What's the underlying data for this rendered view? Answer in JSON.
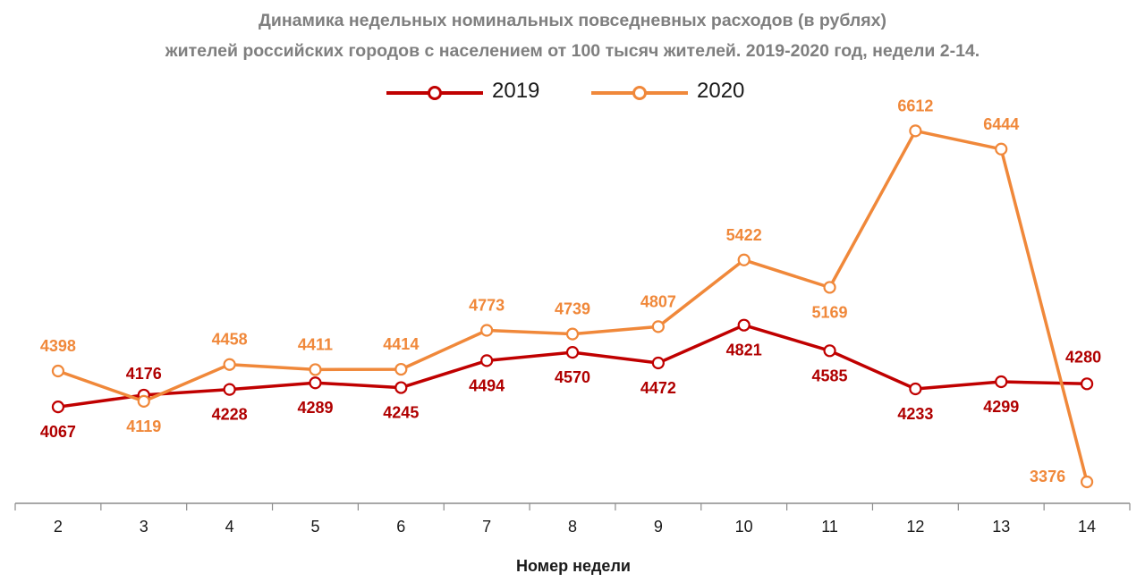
{
  "chart_data": {
    "type": "line",
    "title": "Динамика недельных номинальных повседневных расходов (в рублях)",
    "subtitle": "жителей российских городов с населением от 100 тысяч жителей. 2019-2020 год, недели 2-14.",
    "xlabel": "Номер недели",
    "ylabel": "",
    "x": [
      "2",
      "3",
      "4",
      "5",
      "6",
      "7",
      "8",
      "9",
      "10",
      "11",
      "12",
      "13",
      "14"
    ],
    "ylim": [
      3200,
      6800
    ],
    "grid": false,
    "legend_position": "top-center",
    "series": [
      {
        "name": "2019",
        "color": "#c00000",
        "values": [
          4067,
          4176,
          4228,
          4289,
          4245,
          4494,
          4570,
          4472,
          4821,
          4585,
          4233,
          4299,
          4280
        ]
      },
      {
        "name": "2020",
        "color": "#f0883a",
        "values": [
          4398,
          4119,
          4458,
          4411,
          4414,
          4773,
          4739,
          4807,
          5422,
          5169,
          6612,
          6444,
          3376
        ]
      }
    ]
  }
}
